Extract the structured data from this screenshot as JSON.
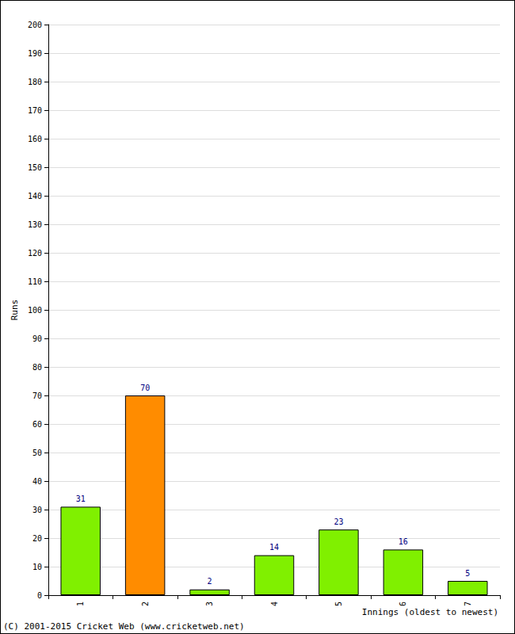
{
  "chart_data": {
    "type": "bar",
    "x_label": "Innings (oldest to newest)",
    "y_label": "Runs",
    "annotations": [
      "(C) 2001-2015 Cricket Web (www.cricketweb.net)"
    ],
    "categories": [
      "1",
      "2",
      "3",
      "4",
      "5",
      "6",
      "7"
    ],
    "values": [
      31,
      70,
      2,
      14,
      23,
      16,
      5
    ],
    "colors": [
      "#80f000",
      "#ff8c00",
      "#80f000",
      "#80f000",
      "#80f000",
      "#80f000",
      "#80f000"
    ],
    "ylim": [
      0,
      200
    ],
    "yticks": [
      0,
      10,
      20,
      30,
      40,
      50,
      60,
      70,
      80,
      90,
      100,
      110,
      120,
      130,
      140,
      150,
      160,
      170,
      180,
      190,
      200
    ],
    "grid": true,
    "data_labels": true
  }
}
